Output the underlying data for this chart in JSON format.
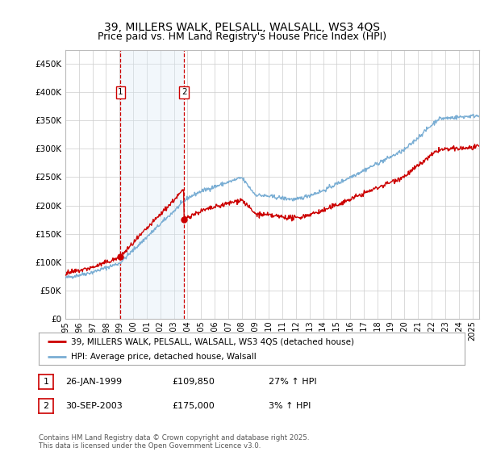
{
  "title": "39, MILLERS WALK, PELSALL, WALSALL, WS3 4QS",
  "subtitle": "Price paid vs. HM Land Registry's House Price Index (HPI)",
  "ylim": [
    0,
    475000
  ],
  "yticks": [
    0,
    50000,
    100000,
    150000,
    200000,
    250000,
    300000,
    350000,
    400000,
    450000
  ],
  "ytick_labels": [
    "£0",
    "£50K",
    "£100K",
    "£150K",
    "£200K",
    "£250K",
    "£300K",
    "£350K",
    "£400K",
    "£450K"
  ],
  "hpi_color": "#7aaed4",
  "price_color": "#cc0000",
  "vline_color": "#cc0000",
  "shade_color": "#daeaf5",
  "transaction_1_date": 1999.07,
  "transaction_1_price": 109850,
  "transaction_1_label": "1",
  "transaction_2_date": 2003.75,
  "transaction_2_price": 175000,
  "transaction_2_label": "2",
  "legend_entry_1": "39, MILLERS WALK, PELSALL, WALSALL, WS3 4QS (detached house)",
  "legend_entry_2": "HPI: Average price, detached house, Walsall",
  "table_row1": [
    "1",
    "26-JAN-1999",
    "£109,850",
    "27% ↑ HPI"
  ],
  "table_row2": [
    "2",
    "30-SEP-2003",
    "£175,000",
    "3% ↑ HPI"
  ],
  "footnote": "Contains HM Land Registry data © Crown copyright and database right 2025.\nThis data is licensed under the Open Government Licence v3.0.",
  "background_color": "#ffffff",
  "grid_color": "#cccccc",
  "title_fontsize": 10,
  "subtitle_fontsize": 9
}
